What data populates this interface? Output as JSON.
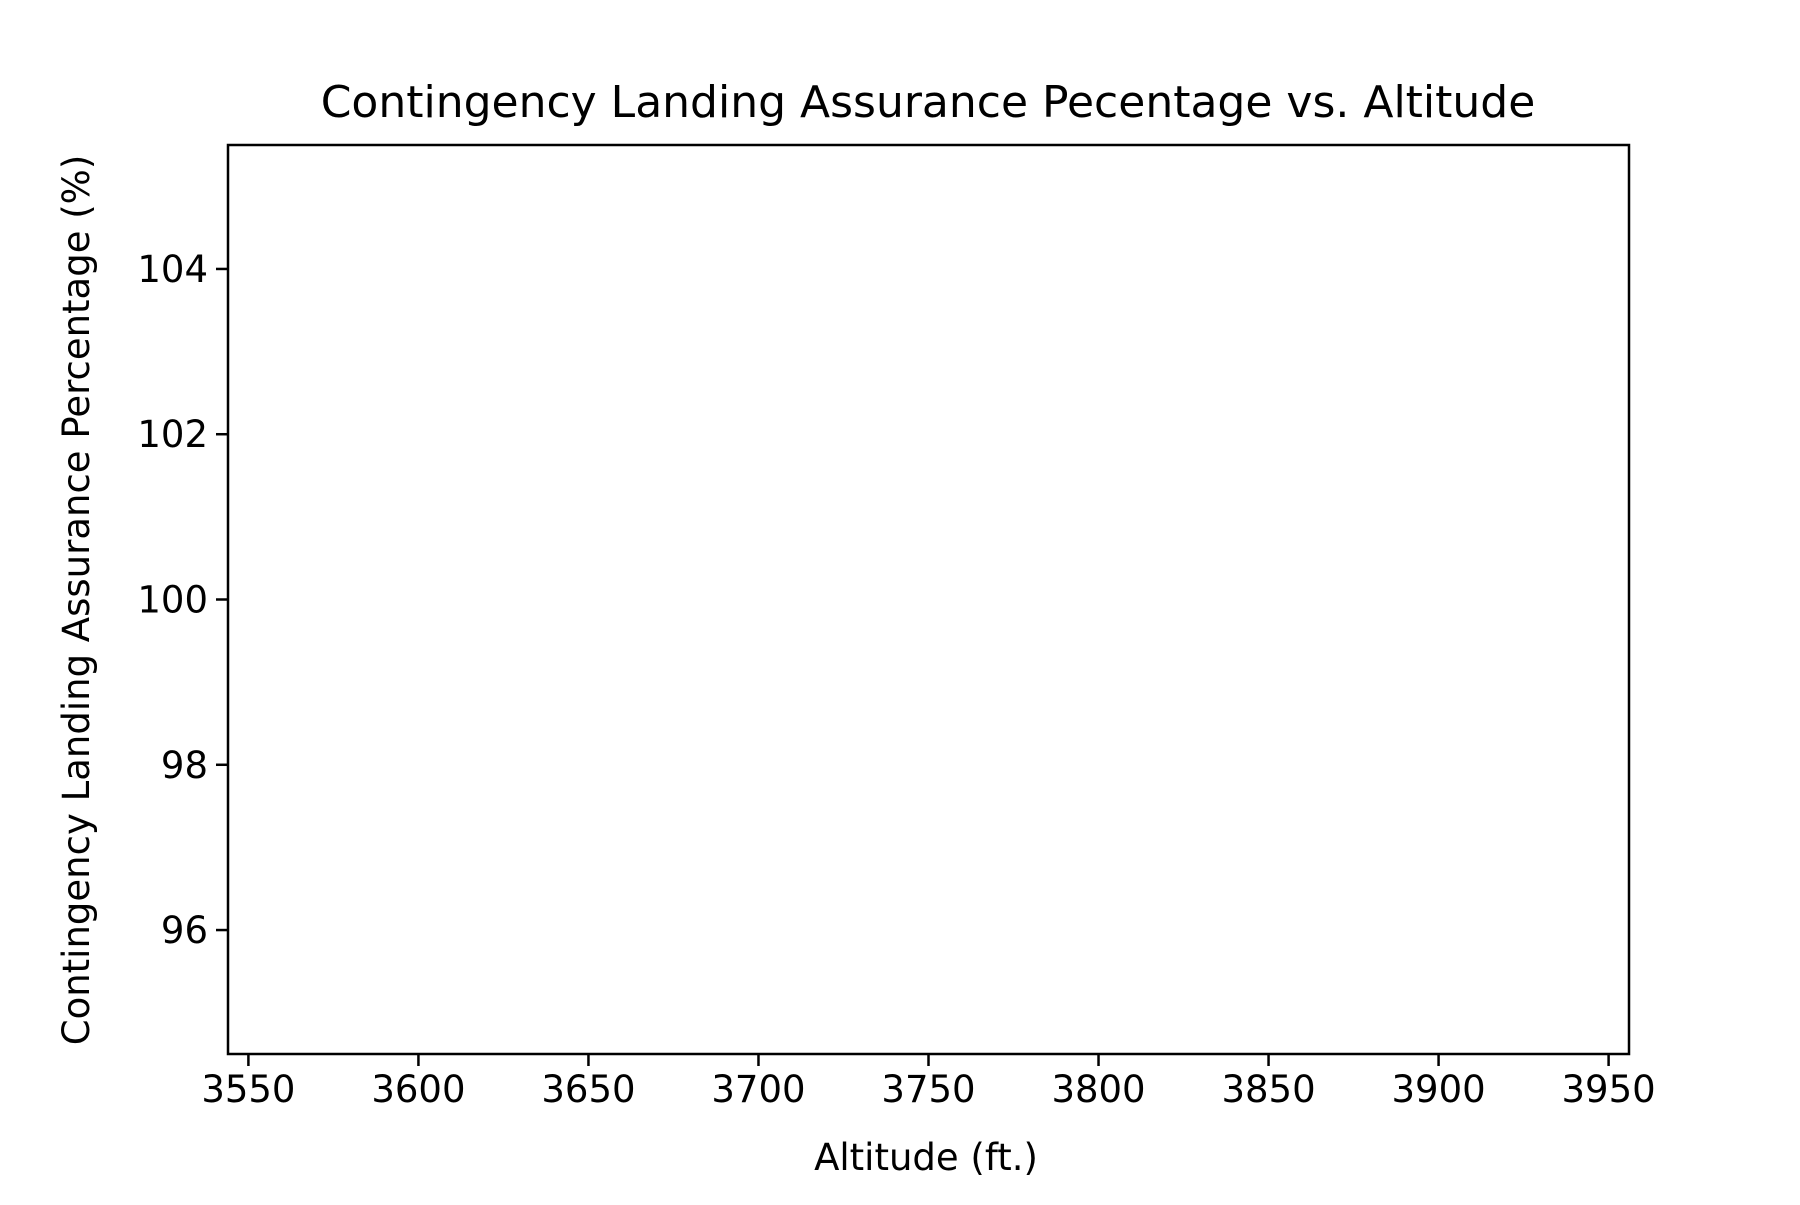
{
  "chart_data": {
    "type": "line",
    "title": "Contingency Landing Assurance Pecentage vs. Altitude",
    "xlabel": "Altitude (ft.)",
    "ylabel": "Contingency Landing Assurance Percentage (%)",
    "xlim": [
      3544,
      3956
    ],
    "ylim": [
      94.5,
      105.5
    ],
    "xticks": [
      3550,
      3600,
      3650,
      3700,
      3750,
      3800,
      3850,
      3900,
      3950
    ],
    "xtick_labels": [
      "3550",
      "3600",
      "3650",
      "3700",
      "3750",
      "3800",
      "3850",
      "3900",
      "3950"
    ],
    "yticks": [
      96,
      98,
      100,
      102,
      104
    ],
    "ytick_labels": [
      "96",
      "98",
      "100",
      "102",
      "104"
    ],
    "series": [],
    "grid": false,
    "legend": "none",
    "colors": {
      "axes": "#000000",
      "background": "#ffffff"
    }
  }
}
